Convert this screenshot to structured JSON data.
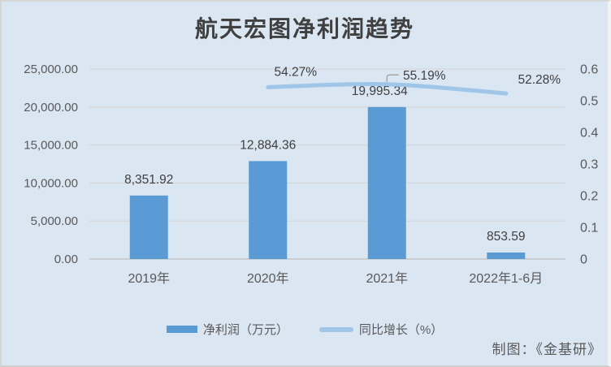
{
  "title": "航天宏图净利润趋势",
  "attribution": "制图：《金基研》",
  "colors": {
    "background": "#dbe6f3",
    "bar": "#5b9bd5",
    "line": "#9fc5e8",
    "gridline": "#d4d4d4",
    "axis_line": "#c0c0c0",
    "tick_text": "#595959",
    "label_text": "#404040",
    "leader": "#a6a6a6"
  },
  "chart_data": {
    "type": "bar",
    "subtype": "bar-line-combo",
    "title": "航天宏图净利润趋势",
    "categories": [
      "2019年",
      "2020年",
      "2021年",
      "2022年1-6月"
    ],
    "series": [
      {
        "name": "净利润（万元）",
        "type": "bar",
        "axis": "left",
        "values": [
          8351.92,
          12884.36,
          19995.34,
          853.59
        ],
        "labels": [
          "8,351.92",
          "12,884.36",
          "19,995.34",
          "853.59"
        ]
      },
      {
        "name": "同比增长（%）",
        "type": "line",
        "axis": "right",
        "values": [
          null,
          0.5427,
          0.5519,
          0.5228
        ],
        "labels": [
          null,
          "54.27%",
          "55.19%",
          "52.28%"
        ]
      }
    ],
    "left_axis": {
      "min": 0,
      "max": 25000,
      "step": 5000,
      "tick_labels": [
        "0.00",
        "5,000.00",
        "10,000.00",
        "15,000.00",
        "20,000.00",
        "25,000.00"
      ]
    },
    "right_axis": {
      "min": 0,
      "max": 0.6,
      "step": 0.1,
      "tick_labels": [
        "0",
        "0.1",
        "0.2",
        "0.3",
        "0.4",
        "0.5",
        "0.6"
      ]
    },
    "grid": true,
    "legend_position": "bottom"
  },
  "legend": {
    "items": [
      {
        "label": "净利润（万元）",
        "swatch": "bar"
      },
      {
        "label": "同比增长（%）",
        "swatch": "line"
      }
    ]
  }
}
